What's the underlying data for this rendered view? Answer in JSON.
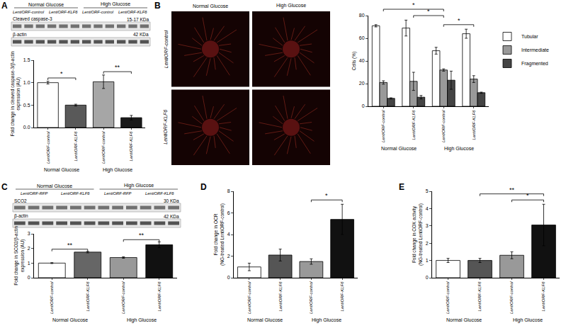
{
  "panels": [
    "A",
    "B",
    "C",
    "D",
    "E"
  ],
  "blots": [
    {
      "panel": "A",
      "groups": [
        "Normal Glucose",
        "High Glucose"
      ],
      "lanes": [
        "LentiORF-control",
        "LentiORF-KLF6",
        "LentiORF-control",
        "LentiORF-KLF6"
      ],
      "rows": [
        {
          "label": "Cleaved caspase-3",
          "size": "15-17 KDa"
        },
        {
          "label": "β-actin",
          "size": "42 KDa"
        }
      ]
    },
    {
      "panel": "C",
      "groups": [
        "Normal Glucose",
        "High Glucose"
      ],
      "lanes": [
        "LentiORF-RFP",
        "LentiORF-KLF6",
        "LentiORF-RFP",
        "LentiORF-KLF6"
      ],
      "rows": [
        {
          "label": "SCO2",
          "size": "30 KDa"
        },
        {
          "label": "β-actin",
          "size": "42 KDa"
        }
      ]
    }
  ],
  "micrographs": {
    "panel": "B",
    "columns": [
      "Normal Glucose",
      "High Glucose"
    ],
    "rows": [
      "LentiORF-control",
      "LentiORF-KLF6"
    ]
  },
  "chart_data": [
    {
      "panel": "A",
      "type": "bar",
      "categories": [
        "LentiORF-control",
        "LentiORF-KLF6",
        "LentiORF-control",
        "LentiORF-KLF6"
      ],
      "groups": [
        {
          "label": "Normal Glucose",
          "size": 2
        },
        {
          "label": "High Glucose",
          "size": 2
        }
      ],
      "values": [
        1.0,
        0.5,
        1.02,
        0.22
      ],
      "errors": [
        0.03,
        0.02,
        0.15,
        0.05
      ],
      "colors": [
        "#ffffff",
        "#595959",
        "#a6a6a6",
        "#1a1a1a"
      ],
      "y_label": "Fold change in cleaved caspase-3/β-actin\nexpression (AU)",
      "ylim": [
        0,
        1.5
      ],
      "yticks": [
        {
          "value": 0,
          "label": "0.0"
        },
        {
          "value": 0.5,
          "label": "0.5"
        },
        {
          "value": 1,
          "label": "1.0"
        },
        {
          "value": 1.5,
          "label": "1.5"
        }
      ],
      "significance": [
        {
          "from": 0,
          "to": 1,
          "label": "*"
        },
        {
          "from": 2,
          "to": 3,
          "label": "**"
        }
      ],
      "grid": false
    },
    {
      "panel": "B",
      "type": "bar",
      "categories": [
        "LentiORF-control",
        "LentiORF-KLF6",
        "LentiORF-control",
        "LentiORF-KLF6"
      ],
      "groups": [
        {
          "label": "Normal Glucose",
          "size": 2
        },
        {
          "label": "High Glucose",
          "size": 2
        }
      ],
      "series": [
        {
          "name": "Tubular",
          "color": "#ffffff",
          "values": [
            71,
            69,
            49,
            64
          ],
          "errors": [
            1,
            7,
            3,
            4
          ]
        },
        {
          "name": "Intermediate",
          "color": "#999999",
          "values": [
            21,
            22,
            32,
            24
          ],
          "errors": [
            1.5,
            8,
            1,
            3
          ]
        },
        {
          "name": "Fragmented",
          "color": "#444444",
          "values": [
            7,
            8,
            23,
            12
          ],
          "errors": [
            0.5,
            1.5,
            8,
            0.5
          ]
        }
      ],
      "y_label": "Cells (%)",
      "ylim": [
        0,
        80
      ],
      "yticks": [
        0,
        20,
        40,
        60,
        80
      ],
      "significance": [
        {
          "from": 2,
          "to": 3,
          "label": "*"
        },
        {
          "from": 1,
          "to": 2,
          "label": "*"
        },
        {
          "from": 0,
          "to": 2,
          "label": "*"
        }
      ],
      "legend": "right",
      "grid": false
    },
    {
      "panel": "C",
      "type": "bar",
      "categories": [
        "LentiORF-control",
        "LentiORF-KLF6",
        "LentiORF-control",
        "LentiORF-KLF6"
      ],
      "groups": [
        {
          "label": "Normal Glucose",
          "size": 2
        },
        {
          "label": "High Glucose",
          "size": 2
        }
      ],
      "values": [
        1.0,
        1.75,
        1.38,
        2.25
      ],
      "errors": [
        0.03,
        0.05,
        0.05,
        0.2
      ],
      "colors": [
        "#ffffff",
        "#666666",
        "#999999",
        "#111111"
      ],
      "y_label": "Fold change in SCO2/β-actin\nexpression (AU)",
      "ylim": [
        0,
        3
      ],
      "yticks": [
        0,
        1,
        2,
        3
      ],
      "significance": [
        {
          "from": 0,
          "to": 1,
          "label": "**"
        },
        {
          "from": 2,
          "to": 3,
          "label": "**"
        }
      ],
      "grid": false
    },
    {
      "panel": "D",
      "type": "bar",
      "categories": [
        "LentiORF-control",
        "LentiORF-KLF6",
        "LentiORF-control",
        "LentiORF-KLF6"
      ],
      "groups": [
        {
          "label": "Normal Glucose",
          "size": 2
        },
        {
          "label": "High Glucose",
          "size": 2
        }
      ],
      "values": [
        1.0,
        2.1,
        1.5,
        5.4
      ],
      "errors": [
        0.35,
        0.55,
        0.25,
        1.4
      ],
      "colors": [
        "#ffffff",
        "#555555",
        "#999999",
        "#111111"
      ],
      "y_label": "Fold change in OCR\n(NG-treated LentiORF-control)",
      "ylim": [
        0,
        8
      ],
      "yticks": [
        0,
        2,
        4,
        6,
        8
      ],
      "significance": [
        {
          "from": 2,
          "to": 3,
          "label": "*"
        }
      ],
      "grid": false
    },
    {
      "panel": "E",
      "type": "bar",
      "categories": [
        "LentiORF-control",
        "LentiORF-KLF6",
        "LentiORF-control",
        "LentiORF-KLF6"
      ],
      "groups": [
        {
          "label": "Normal Glucose",
          "size": 2
        },
        {
          "label": "High Glucose",
          "size": 2
        }
      ],
      "values": [
        1.0,
        1.0,
        1.3,
        3.05
      ],
      "errors": [
        0.12,
        0.12,
        0.2,
        1.2
      ],
      "colors": [
        "#ffffff",
        "#555555",
        "#999999",
        "#111111"
      ],
      "y_label": "Fold change in COX activity\n(NG-treated LentiORF-control)",
      "ylim": [
        0,
        5
      ],
      "yticks": [
        0,
        1,
        2,
        3,
        4,
        5
      ],
      "significance": [
        {
          "from": 2,
          "to": 3,
          "label": "*"
        },
        {
          "from": 1,
          "to": 3,
          "label": "**"
        }
      ],
      "grid": false
    }
  ]
}
